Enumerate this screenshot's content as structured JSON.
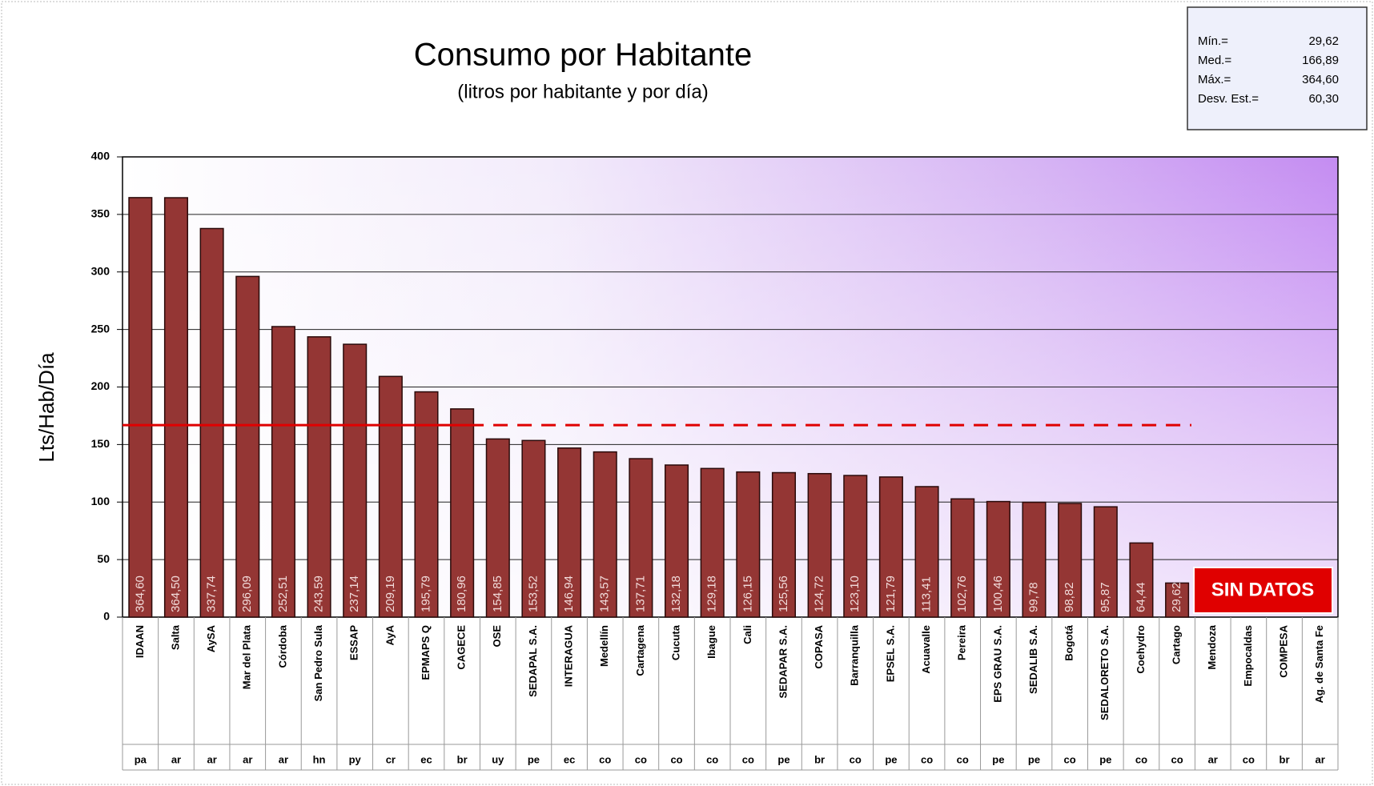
{
  "chart_data": {
    "type": "bar",
    "title": "Consumo por Habitante",
    "subtitle": "(litros por habitante y por día)",
    "y_label": "Lts/Hab/Día",
    "annotation": "SIN DATOS",
    "stats": [
      {
        "label": "Mín.=",
        "value": 29.62,
        "value_label": "29,62"
      },
      {
        "label": "Med.=",
        "value": 166.89,
        "value_label": "166,89"
      },
      {
        "label": "Máx.=",
        "value": 364.6,
        "value_label": "364,60"
      },
      {
        "label": "Desv. Est.=",
        "value": 60.3,
        "value_label": "60,30"
      }
    ],
    "categories": [
      "IDAAN",
      "Salta",
      "AySA",
      "Mar del Plata",
      "Córdoba",
      "San Pedro Sula",
      "ESSAP",
      "AyA",
      "EPMAPS Q",
      "CAGECE",
      "OSE",
      "SEDAPAL S.A.",
      "INTERAGUA",
      "Medellín",
      "Cartagena",
      "Cucuta",
      "Ibague",
      "Cali",
      "SEDAPAR S.A.",
      "COPASA",
      "Barranquilla",
      "EPSEL S.A.",
      "Acuavalle",
      "Pereira",
      "EPS GRAU S.A.",
      "SEDALIB S.A.",
      "Bogotá",
      "SEDALORETO S.A.",
      "Coehydro",
      "Cartago",
      "Mendoza",
      "Empocaldas",
      "COMPESA",
      "Ag. de Santa Fe"
    ],
    "countries": [
      "pa",
      "ar",
      "ar",
      "ar",
      "ar",
      "hn",
      "py",
      "cr",
      "ec",
      "br",
      "uy",
      "pe",
      "ec",
      "co",
      "co",
      "co",
      "co",
      "co",
      "pe",
      "br",
      "co",
      "pe",
      "co",
      "co",
      "pe",
      "pe",
      "co",
      "pe",
      "co",
      "co",
      "ar",
      "co",
      "br",
      "ar"
    ],
    "values": [
      364.6,
      364.5,
      337.74,
      296.09,
      252.51,
      243.59,
      237.14,
      209.19,
      195.79,
      180.96,
      154.85,
      153.52,
      146.94,
      143.57,
      137.71,
      132.18,
      129.18,
      126.15,
      125.56,
      124.72,
      123.1,
      121.79,
      113.41,
      102.76,
      100.46,
      99.78,
      98.82,
      95.87,
      64.44,
      29.62,
      null,
      null,
      null,
      null
    ],
    "value_labels": [
      "364,60",
      "364,50",
      "337,74",
      "296,09",
      "252,51",
      "243,59",
      "237,14",
      "209,19",
      "195,79",
      "180,96",
      "154,85",
      "153,52",
      "146,94",
      "143,57",
      "137,71",
      "132,18",
      "129,18",
      "126,15",
      "125,56",
      "124,72",
      "123,10",
      "121,79",
      "113,41",
      "102,76",
      "100,46",
      "99,78",
      "98,82",
      "95,87",
      "64,44",
      "29,62",
      null,
      null,
      null,
      null
    ],
    "color": "#943634",
    "ylim": [
      0,
      400
    ],
    "yticks": [
      0,
      50,
      100,
      150,
      200,
      250,
      300,
      350,
      400
    ],
    "grid": true
  }
}
